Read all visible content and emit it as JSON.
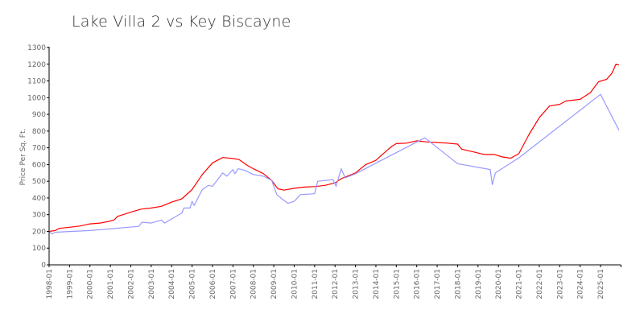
{
  "chart_data": {
    "type": "line",
    "title": "Lake Villa 2 vs Key Biscayne",
    "xlabel": "",
    "ylabel": "Price Per Sq. Ft.",
    "ylim": [
      0,
      1300
    ],
    "xlim": [
      1998.0,
      2026.0
    ],
    "yticks": [
      "0",
      "100",
      "200",
      "300",
      "400",
      "500",
      "600",
      "700",
      "800",
      "900",
      "1000",
      "1100",
      "1200",
      "1300"
    ],
    "xticks": [
      "1998-01",
      "1999-01",
      "2000-01",
      "2001-01",
      "2002-01",
      "2003-01",
      "2004-01",
      "2005-01",
      "2006-01",
      "2007-01",
      "2008-01",
      "2009-01",
      "2010-01",
      "2011-01",
      "2012-01",
      "2013-01",
      "2014-01",
      "2015-01",
      "2016-01",
      "2017-01",
      "2018-01",
      "2019-01",
      "2020-01",
      "2021-01",
      "2022-01",
      "2023-01",
      "2024-01",
      "2025-01"
    ],
    "grid": false,
    "series": [
      {
        "name": "Lake Villa 2",
        "color": "#ff0000",
        "points": [
          [
            1998.0,
            200
          ],
          [
            1998.3,
            205
          ],
          [
            1998.5,
            218
          ],
          [
            1999.0,
            225
          ],
          [
            1999.5,
            232
          ],
          [
            2000.0,
            245
          ],
          [
            2000.5,
            250
          ],
          [
            2001.0,
            262
          ],
          [
            2001.2,
            270
          ],
          [
            2001.35,
            290
          ],
          [
            2002.0,
            315
          ],
          [
            2002.5,
            333
          ],
          [
            2003.0,
            340
          ],
          [
            2003.5,
            350
          ],
          [
            2004.0,
            375
          ],
          [
            2004.5,
            395
          ],
          [
            2005.0,
            450
          ],
          [
            2005.5,
            540
          ],
          [
            2006.0,
            610
          ],
          [
            2006.5,
            642
          ],
          [
            2007.0,
            636
          ],
          [
            2007.3,
            630
          ],
          [
            2007.7,
            595
          ],
          [
            2008.0,
            575
          ],
          [
            2008.5,
            545
          ],
          [
            2008.9,
            505
          ],
          [
            2009.2,
            455
          ],
          [
            2009.5,
            447
          ],
          [
            2010.0,
            458
          ],
          [
            2010.5,
            465
          ],
          [
            2011.0,
            468
          ],
          [
            2011.5,
            475
          ],
          [
            2012.0,
            490
          ],
          [
            2012.3,
            515
          ],
          [
            2013.0,
            550
          ],
          [
            2013.5,
            600
          ],
          [
            2014.0,
            625
          ],
          [
            2014.5,
            680
          ],
          [
            2014.8,
            710
          ],
          [
            2015.0,
            725
          ],
          [
            2015.5,
            728
          ],
          [
            2016.0,
            742
          ],
          [
            2016.5,
            735
          ],
          [
            2017.0,
            732
          ],
          [
            2017.5,
            728
          ],
          [
            2018.0,
            722
          ],
          [
            2018.2,
            692
          ],
          [
            2018.8,
            675
          ],
          [
            2019.3,
            660
          ],
          [
            2019.8,
            660
          ],
          [
            2020.2,
            645
          ],
          [
            2020.6,
            638
          ],
          [
            2021.0,
            665
          ],
          [
            2021.5,
            780
          ],
          [
            2022.0,
            880
          ],
          [
            2022.5,
            950
          ],
          [
            2023.0,
            960
          ],
          [
            2023.3,
            980
          ],
          [
            2024.0,
            990
          ],
          [
            2024.5,
            1030
          ],
          [
            2024.9,
            1095
          ],
          [
            2025.3,
            1110
          ],
          [
            2025.55,
            1145
          ],
          [
            2025.75,
            1200
          ],
          [
            2025.9,
            1195
          ]
        ]
      },
      {
        "name": "Key Biscayne",
        "color": "#9999ff",
        "points": [
          [
            1998.0,
            200
          ],
          [
            1998.15,
            185
          ],
          [
            1998.3,
            195
          ],
          [
            2000.0,
            205
          ],
          [
            2002.4,
            230
          ],
          [
            2002.55,
            255
          ],
          [
            2003.0,
            250
          ],
          [
            2003.5,
            268
          ],
          [
            2003.65,
            250
          ],
          [
            2004.5,
            310
          ],
          [
            2004.6,
            340
          ],
          [
            2004.9,
            340
          ],
          [
            2005.0,
            380
          ],
          [
            2005.1,
            355
          ],
          [
            2005.5,
            450
          ],
          [
            2005.8,
            475
          ],
          [
            2006.0,
            470
          ],
          [
            2006.5,
            550
          ],
          [
            2006.7,
            530
          ],
          [
            2007.0,
            570
          ],
          [
            2007.1,
            545
          ],
          [
            2007.25,
            575
          ],
          [
            2007.6,
            565
          ],
          [
            2008.0,
            540
          ],
          [
            2008.5,
            530
          ],
          [
            2008.9,
            505
          ],
          [
            2009.15,
            420
          ],
          [
            2009.5,
            385
          ],
          [
            2009.7,
            368
          ],
          [
            2010.0,
            380
          ],
          [
            2010.3,
            420
          ],
          [
            2011.0,
            425
          ],
          [
            2011.15,
            500
          ],
          [
            2011.9,
            510
          ],
          [
            2012.05,
            470
          ],
          [
            2012.3,
            575
          ],
          [
            2012.5,
            520
          ],
          [
            2013.0,
            545
          ],
          [
            2016.4,
            760
          ],
          [
            2018.0,
            605
          ],
          [
            2019.6,
            570
          ],
          [
            2019.7,
            480
          ],
          [
            2019.85,
            550
          ],
          [
            2021.0,
            640
          ],
          [
            2025.0,
            1020
          ],
          [
            2025.9,
            805
          ]
        ]
      }
    ]
  }
}
